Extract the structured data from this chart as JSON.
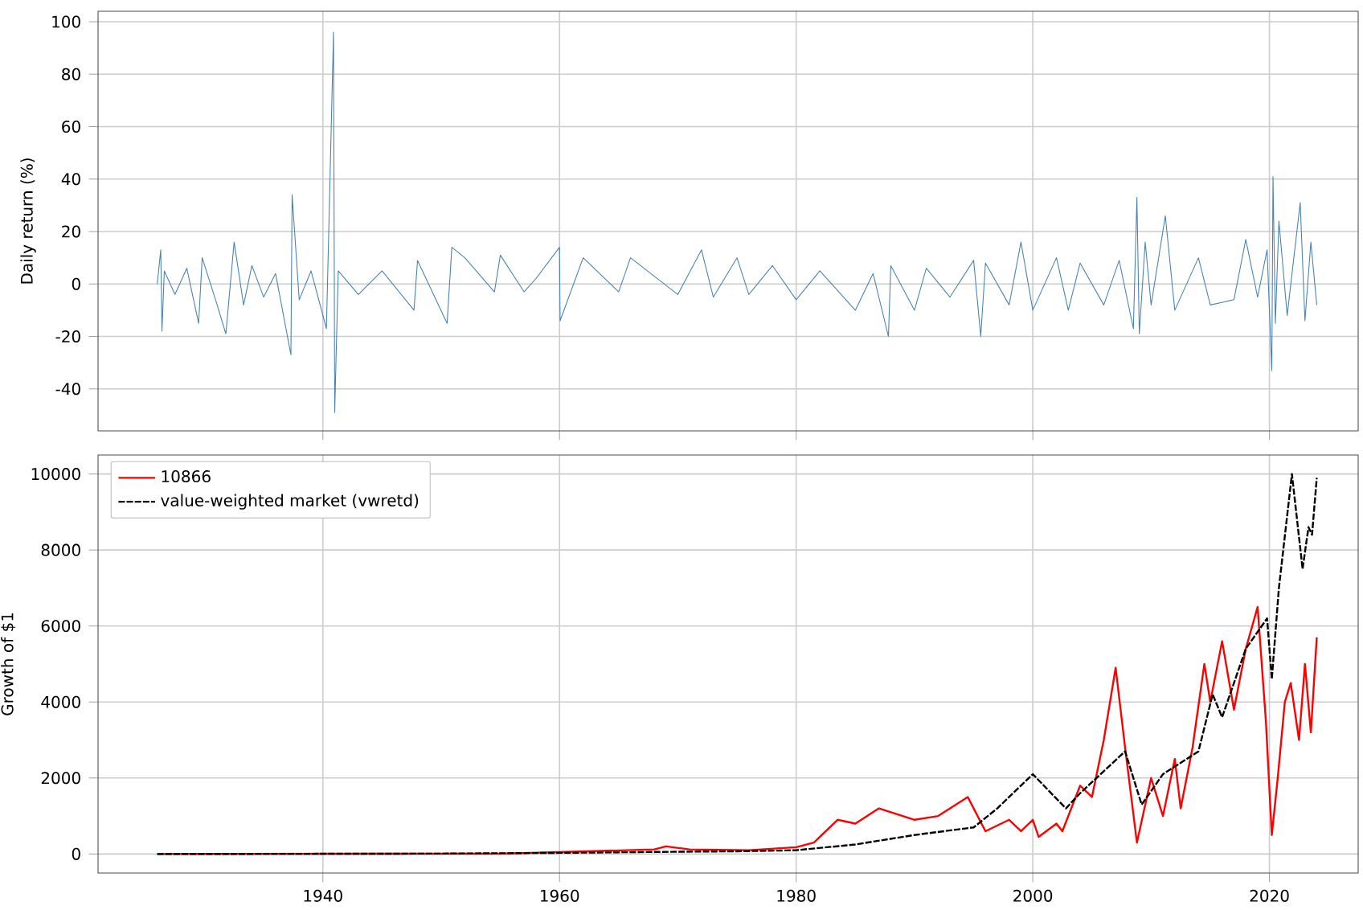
{
  "chart_data": [
    {
      "type": "line",
      "ylabel": "Daily return (%)",
      "xlim": [
        1921,
        2027.5
      ],
      "ylim": [
        -56,
        104
      ],
      "xticks": [
        1940,
        1960,
        1980,
        2000,
        2020
      ],
      "yticks": [
        -40,
        -20,
        0,
        20,
        40,
        60,
        80,
        100
      ],
      "grid": true,
      "tick_labels": "y",
      "series": [
        {
          "color": "#4682b4",
          "x": [
            1926.0,
            1926.3,
            1926.4,
            1926.6,
            1927.5,
            1928.5,
            1929.5,
            1929.8,
            1931,
            1931.8,
            1932.5,
            1933.3,
            1934,
            1935,
            1936,
            1937.3,
            1937.4,
            1938,
            1939,
            1940.3,
            1940.9,
            1941.0,
            1941.3,
            1943,
            1945,
            1947.7,
            1948,
            1950.5,
            1950.9,
            1952,
            1954.5,
            1955,
            1956,
            1957,
            1958,
            1960,
            1960.05,
            1962,
            1965,
            1966,
            1968,
            1970,
            1972,
            1973,
            1975,
            1976,
            1978,
            1980,
            1982,
            1985,
            1986.5,
            1987.8,
            1988,
            1990,
            1991,
            1993,
            1995,
            1995.6,
            1996,
            1998,
            1999,
            2000,
            2002,
            2003,
            2004,
            2006,
            2007.3,
            2008.5,
            2008.8,
            2009.0,
            2009.5,
            2010,
            2011.2,
            2012,
            2014,
            2015,
            2017,
            2018,
            2019,
            2019.8,
            2020.2,
            2020.3,
            2020.5,
            2020.8,
            2021.5,
            2022.6,
            2023,
            2023.5,
            2024.0
          ],
          "values": [
            0,
            13,
            -18,
            5,
            -4,
            6,
            -15,
            10,
            -7,
            -19,
            16,
            -8,
            7,
            -5,
            4,
            -27,
            34,
            -6,
            5,
            -17,
            96,
            -49,
            5,
            -4,
            5,
            -10,
            9,
            -15,
            14,
            10,
            -3,
            11,
            4,
            -3,
            2,
            14,
            -14,
            10,
            -3,
            10,
            3,
            -4,
            13,
            -5,
            10,
            -4,
            7,
            -6,
            5,
            -10,
            4,
            -20,
            7,
            -10,
            6,
            -5,
            9,
            -20,
            8,
            -8,
            16,
            -10,
            10,
            -10,
            8,
            -8,
            9,
            -17,
            33,
            -19,
            16,
            -8,
            26,
            -10,
            10,
            -8,
            -6,
            17,
            -5,
            13,
            -33,
            41,
            -15,
            24,
            -12,
            31,
            -14,
            16,
            -8
          ]
        }
      ]
    },
    {
      "type": "line",
      "ylabel": "Growth of $1",
      "xlim": [
        1921,
        2027.5
      ],
      "ylim": [
        -500,
        10500
      ],
      "xticks": [
        1940,
        1960,
        1980,
        2000,
        2020
      ],
      "yticks": [
        0,
        2000,
        4000,
        6000,
        8000,
        10000
      ],
      "grid": true,
      "legend": "top left",
      "series": [
        {
          "name": "10866",
          "color": "#ff0000",
          "line_style": "solid",
          "x": [
            1926,
            1955,
            1960,
            1968,
            1969,
            1971,
            1976,
            1980,
            1981.5,
            1983.5,
            1985,
            1987,
            1990,
            1992,
            1994.5,
            1996,
            1998,
            1999,
            2000,
            2000.5,
            2002,
            2002.5,
            2004,
            2005,
            2006,
            2007,
            2007.8,
            2008.8,
            2010,
            2011,
            2012,
            2012.5,
            2013.5,
            2014.5,
            2015,
            2016,
            2017,
            2018,
            2019,
            2019.7,
            2020.2,
            2020.7,
            2021.3,
            2021.8,
            2022.5,
            2023,
            2023.5,
            2024
          ],
          "values": [
            0,
            10,
            50,
            120,
            200,
            120,
            100,
            180,
            300,
            900,
            800,
            1200,
            900,
            1000,
            1500,
            600,
            900,
            600,
            900,
            450,
            800,
            600,
            1800,
            1500,
            3000,
            4900,
            2800,
            300,
            2000,
            1000,
            2500,
            1200,
            2800,
            5000,
            4000,
            5600,
            3800,
            5400,
            6500,
            3500,
            500,
            2000,
            4000,
            4500,
            3000,
            5000,
            3200,
            5700
          ]
        },
        {
          "name": "value-weighted market (vwretd)",
          "color": "#000000",
          "line_style": "dashed",
          "x": [
            1926,
            1950,
            1960,
            1970,
            1975,
            1980,
            1985,
            1990,
            1995,
            1997,
            2000,
            2002.8,
            2004,
            2007.8,
            2009.2,
            2011,
            2014,
            2015.2,
            2016,
            2018,
            2019.8,
            2020.2,
            2020.8,
            2021.9,
            2022.8,
            2023.3,
            2023.6,
            2024.0
          ],
          "values": [
            0,
            10,
            30,
            60,
            70,
            100,
            250,
            500,
            700,
            1200,
            2100,
            1200,
            1600,
            2700,
            1300,
            2100,
            2700,
            4200,
            3600,
            5400,
            6200,
            4600,
            7000,
            10000,
            7500,
            8600,
            8400,
            9900
          ]
        }
      ]
    }
  ]
}
